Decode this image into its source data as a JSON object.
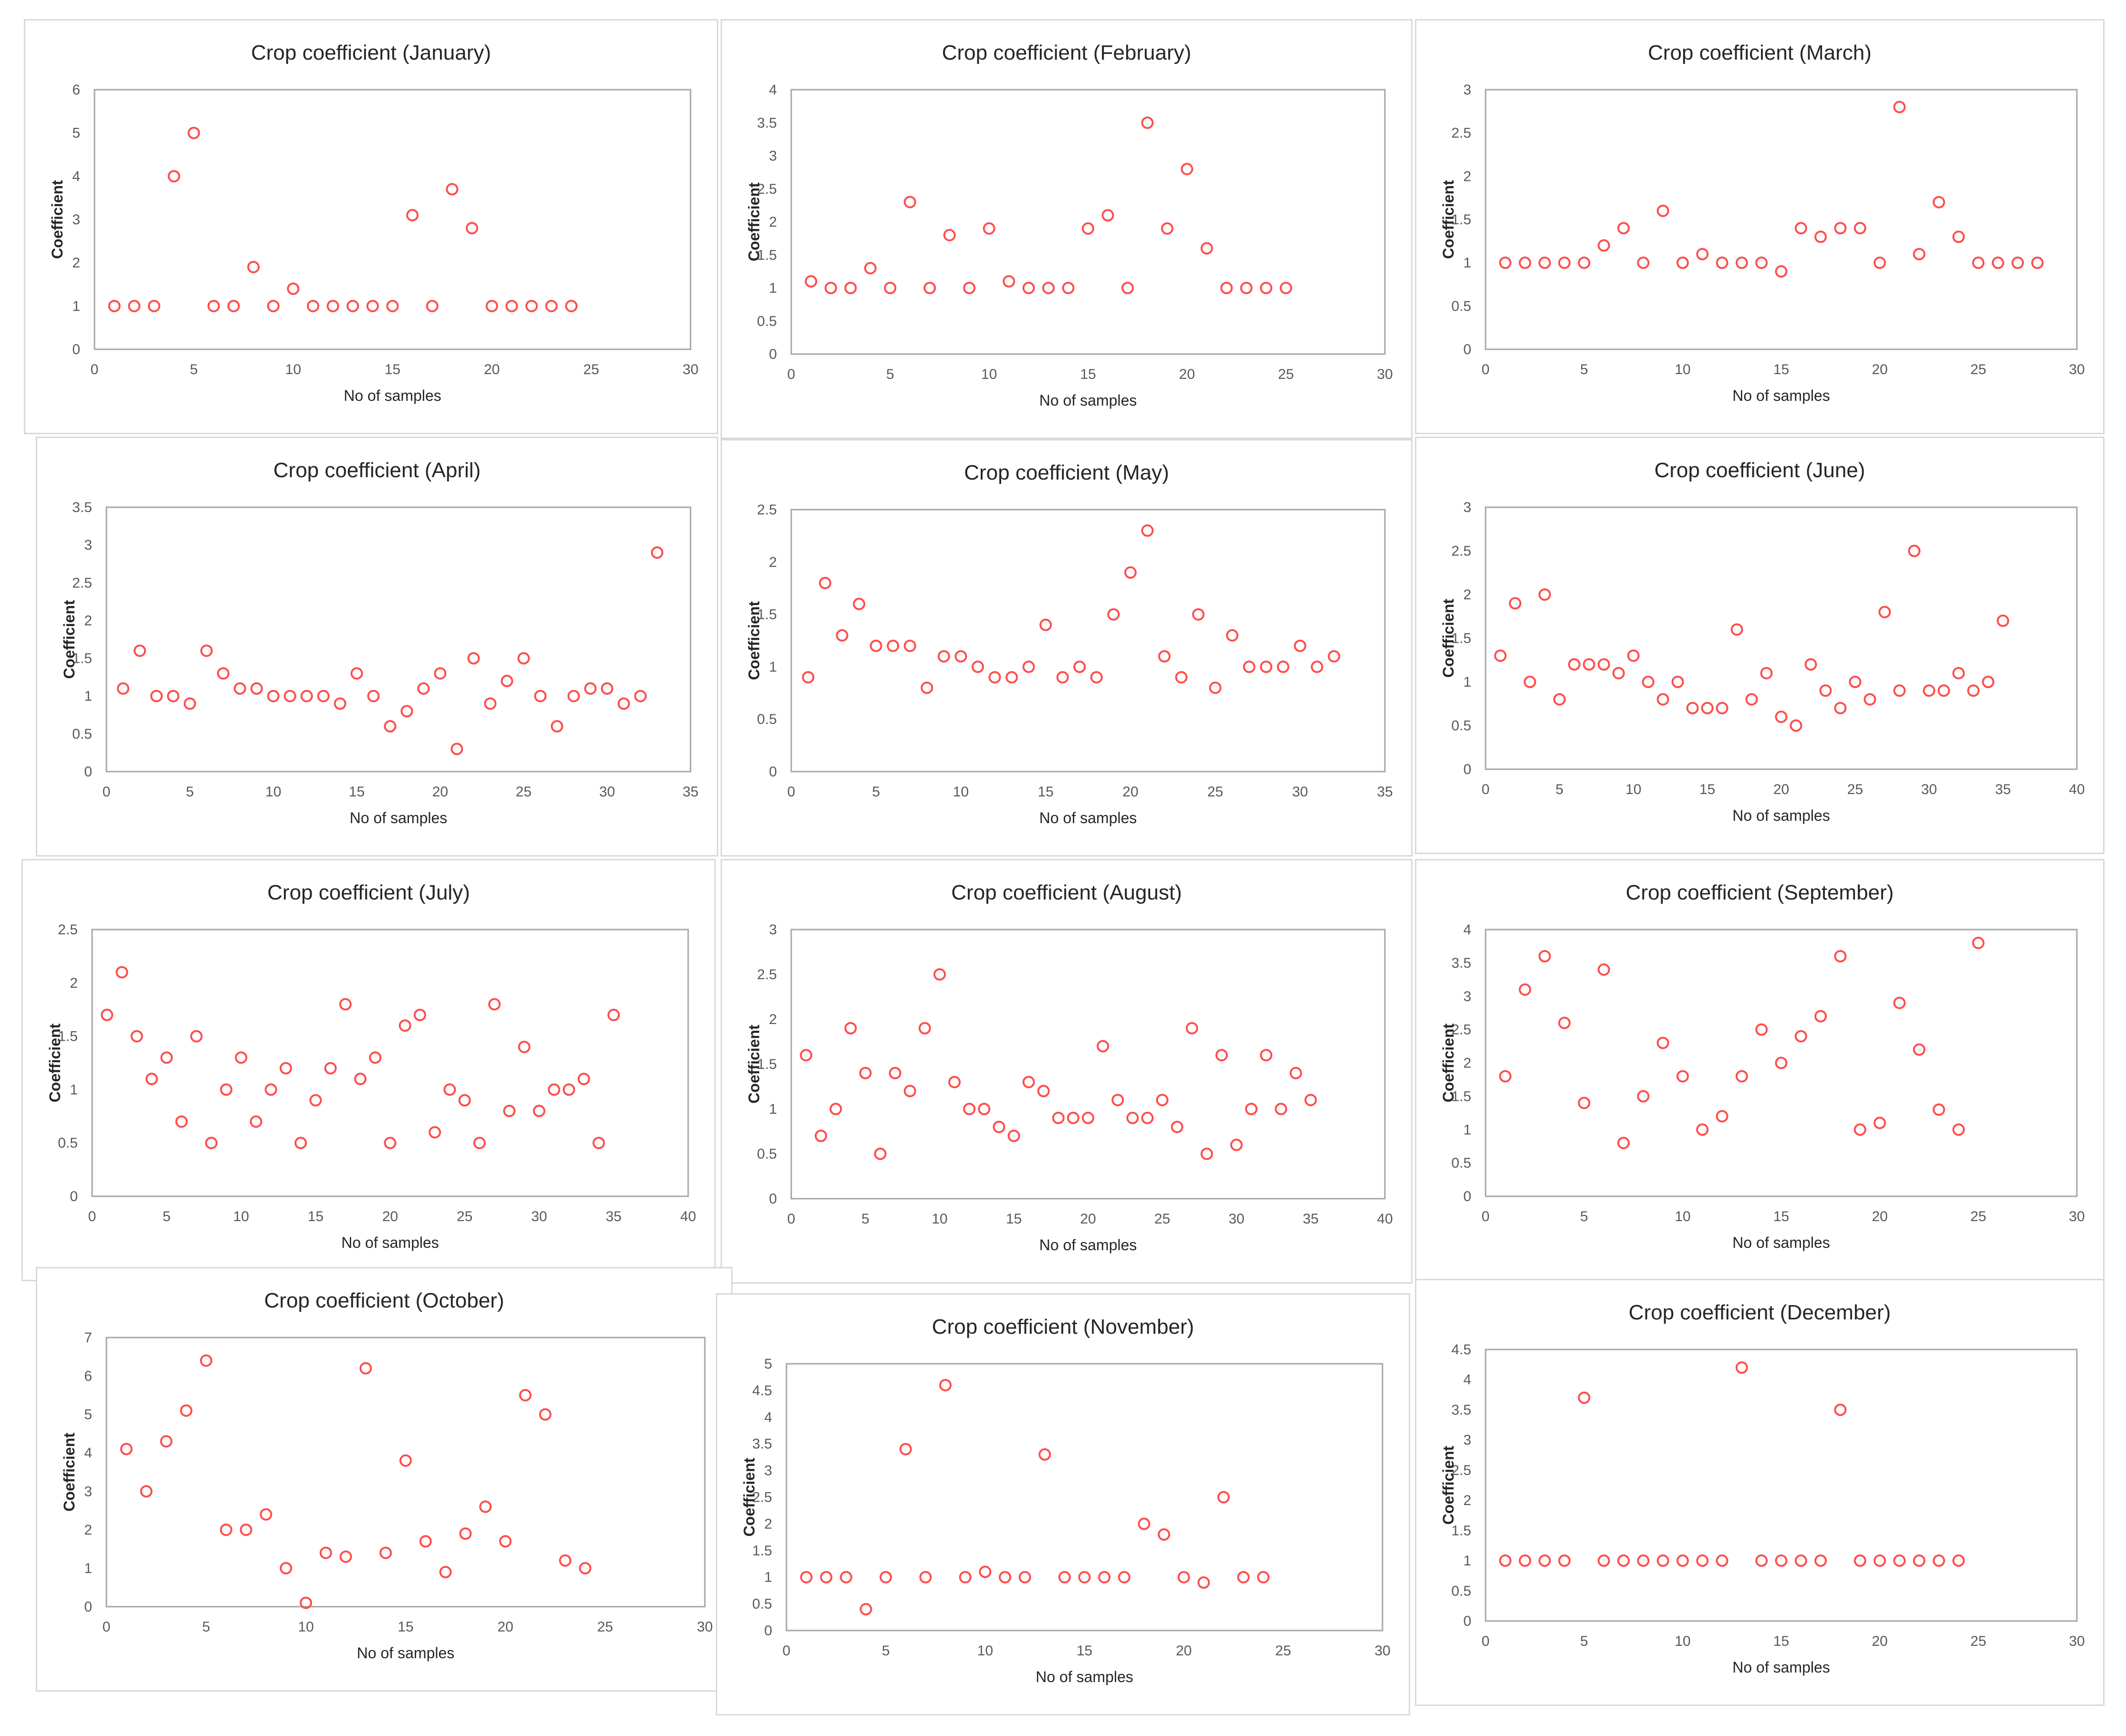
{
  "colors": {
    "marker": "#ff4d4d",
    "frame": "#a6a6a6",
    "text": "#262626",
    "tick": "#595959"
  },
  "chart_data": [
    {
      "type": "scatter",
      "title": "Crop coefficient (January)",
      "xlabel": "No of samples",
      "ylabel": "Coefficient",
      "xlim": [
        0,
        30
      ],
      "ylim": [
        0,
        6
      ],
      "xticks": [
        0,
        5,
        10,
        15,
        20,
        25,
        30
      ],
      "yticks": [
        0,
        1,
        2,
        3,
        4,
        5,
        6
      ],
      "x": [
        1,
        2,
        3,
        4,
        5,
        6,
        7,
        8,
        9,
        10,
        11,
        12,
        13,
        14,
        15,
        16,
        17,
        18,
        19,
        20,
        21,
        22,
        23,
        24
      ],
      "y": [
        1,
        1,
        1,
        4,
        5,
        1,
        1,
        1.9,
        1,
        1.4,
        1,
        1,
        1,
        1,
        1,
        3.1,
        1,
        3.7,
        2.8,
        1,
        1,
        1,
        1,
        1
      ]
    },
    {
      "type": "scatter",
      "title": "Crop coefficient (February)",
      "xlabel": "No of samples",
      "ylabel": "Coefficient",
      "xlim": [
        0,
        30
      ],
      "ylim": [
        0,
        4
      ],
      "xticks": [
        0,
        5,
        10,
        15,
        20,
        25,
        30
      ],
      "yticks": [
        0,
        0.5,
        1,
        1.5,
        2,
        2.5,
        3,
        3.5,
        4
      ],
      "x": [
        1,
        2,
        3,
        4,
        5,
        6,
        7,
        8,
        9,
        10,
        11,
        12,
        13,
        14,
        15,
        16,
        17,
        18,
        19,
        20,
        21,
        22,
        23,
        24,
        25
      ],
      "y": [
        1.1,
        1,
        1,
        1.3,
        1,
        2.3,
        1,
        1.8,
        1,
        1.9,
        1.1,
        1,
        1,
        1,
        1.9,
        2.1,
        1,
        3.5,
        1.9,
        2.8,
        1.6,
        1,
        1,
        1,
        1
      ]
    },
    {
      "type": "scatter",
      "title": "Crop coefficient (March)",
      "xlabel": "No of samples",
      "ylabel": "Coefficient",
      "xlim": [
        0,
        30
      ],
      "ylim": [
        0,
        3
      ],
      "xticks": [
        0,
        5,
        10,
        15,
        20,
        25,
        30
      ],
      "yticks": [
        0,
        0.5,
        1,
        1.5,
        2,
        2.5,
        3
      ],
      "x": [
        1,
        2,
        3,
        4,
        5,
        6,
        7,
        8,
        9,
        10,
        11,
        12,
        13,
        14,
        15,
        16,
        17,
        18,
        19,
        20,
        21,
        22,
        23,
        24,
        25,
        26,
        27,
        28
      ],
      "y": [
        1,
        1,
        1,
        1,
        1,
        1.2,
        1.4,
        1,
        1.6,
        1,
        1.1,
        1,
        1,
        1,
        0.9,
        1.4,
        1.3,
        1.4,
        1.4,
        1,
        2.8,
        1.1,
        1.7,
        1.3,
        1,
        1,
        1,
        1
      ]
    },
    {
      "type": "scatter",
      "title": "Crop coefficient (April)",
      "xlabel": "No of samples",
      "ylabel": "Coefficient",
      "xlim": [
        0,
        35
      ],
      "ylim": [
        0,
        3.5
      ],
      "xticks": [
        0,
        5,
        10,
        15,
        20,
        25,
        30,
        35
      ],
      "yticks": [
        0,
        0.5,
        1,
        1.5,
        2,
        2.5,
        3,
        3.5
      ],
      "x": [
        1,
        2,
        3,
        4,
        5,
        6,
        7,
        8,
        9,
        10,
        11,
        12,
        13,
        14,
        15,
        16,
        17,
        18,
        19,
        20,
        21,
        22,
        23,
        24,
        25,
        26,
        27,
        28,
        29,
        30,
        31,
        32,
        33
      ],
      "y": [
        1.1,
        1.6,
        1,
        1,
        0.9,
        1.6,
        1.3,
        1.1,
        1.1,
        1,
        1,
        1,
        1,
        0.9,
        1.3,
        1,
        0.6,
        0.8,
        1.1,
        1.3,
        0.3,
        1.5,
        0.9,
        1.2,
        1.5,
        1,
        0.6,
        1,
        1.1,
        1.1,
        0.9,
        1,
        2.9
      ]
    },
    {
      "type": "scatter",
      "title": "Crop coefficient (May)",
      "xlabel": "No of samples",
      "ylabel": "Coefficient",
      "xlim": [
        0,
        35
      ],
      "ylim": [
        0,
        2.5
      ],
      "xticks": [
        0,
        5,
        10,
        15,
        20,
        25,
        30,
        35
      ],
      "yticks": [
        0,
        0.5,
        1,
        1.5,
        2,
        2.5
      ],
      "x": [
        1,
        2,
        3,
        4,
        5,
        6,
        7,
        8,
        9,
        10,
        11,
        12,
        13,
        14,
        15,
        16,
        17,
        18,
        19,
        20,
        21,
        22,
        23,
        24,
        25,
        26,
        27,
        28,
        29,
        30,
        31,
        32
      ],
      "y": [
        0.9,
        1.8,
        1.3,
        1.6,
        1.2,
        1.2,
        1.2,
        0.8,
        1.1,
        1.1,
        1,
        0.9,
        0.9,
        1,
        1.4,
        0.9,
        1,
        0.9,
        1.5,
        1.9,
        2.3,
        1.1,
        0.9,
        1.5,
        0.8,
        1.3,
        1,
        1,
        1,
        1.2,
        1,
        1.1
      ]
    },
    {
      "type": "scatter",
      "title": "Crop coefficient (June)",
      "xlabel": "No of samples",
      "ylabel": "Coefficient",
      "xlim": [
        0,
        40
      ],
      "ylim": [
        0,
        3
      ],
      "xticks": [
        0,
        5,
        10,
        15,
        20,
        25,
        30,
        35,
        40
      ],
      "yticks": [
        0,
        0.5,
        1,
        1.5,
        2,
        2.5,
        3
      ],
      "x": [
        1,
        2,
        3,
        4,
        5,
        6,
        7,
        8,
        9,
        10,
        11,
        12,
        13,
        14,
        15,
        16,
        17,
        18,
        19,
        20,
        21,
        22,
        23,
        24,
        25,
        26,
        27,
        28,
        29,
        30,
        31,
        32,
        33,
        34,
        35
      ],
      "y": [
        1.3,
        1.9,
        1,
        2,
        0.8,
        1.2,
        1.2,
        1.2,
        1.1,
        1.3,
        1,
        0.8,
        1,
        0.7,
        0.7,
        0.7,
        1.6,
        0.8,
        1.1,
        0.6,
        0.5,
        1.2,
        0.9,
        0.7,
        1,
        0.8,
        1.8,
        0.9,
        2.5,
        0.9,
        0.9,
        1.1,
        0.9,
        1,
        1.7
      ]
    },
    {
      "type": "scatter",
      "title": "Crop coefficient (July)",
      "xlabel": "No of samples",
      "ylabel": "Coefficient",
      "xlim": [
        0,
        40
      ],
      "ylim": [
        0,
        2.5
      ],
      "xticks": [
        0,
        5,
        10,
        15,
        20,
        25,
        30,
        35,
        40
      ],
      "yticks": [
        0,
        0.5,
        1,
        1.5,
        2,
        2.5
      ],
      "x": [
        1,
        2,
        3,
        4,
        5,
        6,
        7,
        8,
        9,
        10,
        11,
        12,
        13,
        14,
        15,
        16,
        17,
        18,
        19,
        20,
        21,
        22,
        23,
        24,
        25,
        26,
        27,
        28,
        29,
        30,
        31,
        32,
        33,
        34,
        35
      ],
      "y": [
        1.7,
        2.1,
        1.5,
        1.1,
        1.3,
        0.7,
        1.5,
        0.5,
        1,
        1.3,
        0.7,
        1,
        1.2,
        0.5,
        0.9,
        1.2,
        1.8,
        1.1,
        1.3,
        0.5,
        1.6,
        1.7,
        0.6,
        1,
        0.9,
        0.5,
        1.8,
        0.8,
        1.4,
        0.8,
        1,
        1,
        1.1,
        0.5,
        1.7
      ]
    },
    {
      "type": "scatter",
      "title": "Crop coefficient (August)",
      "xlabel": "No of samples",
      "ylabel": "Coefficient",
      "xlim": [
        0,
        40
      ],
      "ylim": [
        0,
        3
      ],
      "xticks": [
        0,
        5,
        10,
        15,
        20,
        25,
        30,
        35,
        40
      ],
      "yticks": [
        0,
        0.5,
        1,
        1.5,
        2,
        2.5,
        3
      ],
      "x": [
        1,
        2,
        3,
        4,
        5,
        6,
        7,
        8,
        9,
        10,
        11,
        12,
        13,
        14,
        15,
        16,
        17,
        18,
        19,
        20,
        21,
        22,
        23,
        24,
        25,
        26,
        27,
        28,
        29,
        30,
        31,
        32,
        33,
        34,
        35
      ],
      "y": [
        1.6,
        0.7,
        1,
        1.9,
        1.4,
        0.5,
        1.4,
        1.2,
        1.9,
        2.5,
        1.3,
        1,
        1,
        0.8,
        0.7,
        1.3,
        1.2,
        0.9,
        0.9,
        0.9,
        1.7,
        1.1,
        0.9,
        0.9,
        1.1,
        0.8,
        1.9,
        0.5,
        1.6,
        0.6,
        1,
        1.6,
        1,
        1.4,
        1.1
      ]
    },
    {
      "type": "scatter",
      "title": "Crop coefficient (September)",
      "xlabel": "No of samples",
      "ylabel": "Coefficient",
      "xlim": [
        0,
        30
      ],
      "ylim": [
        0,
        4
      ],
      "xticks": [
        0,
        5,
        10,
        15,
        20,
        25,
        30
      ],
      "yticks": [
        0,
        0.5,
        1,
        1.5,
        2,
        2.5,
        3,
        3.5,
        4
      ],
      "x": [
        1,
        2,
        3,
        4,
        5,
        6,
        7,
        8,
        9,
        10,
        11,
        12,
        13,
        14,
        15,
        16,
        17,
        18,
        19,
        20,
        21,
        22,
        23,
        24,
        25
      ],
      "y": [
        1.8,
        3.1,
        3.6,
        2.6,
        1.4,
        3.4,
        0.8,
        1.5,
        2.3,
        1.8,
        1,
        1.2,
        1.8,
        2.5,
        2,
        2.4,
        2.7,
        3.6,
        1,
        1.1,
        2.9,
        2.2,
        1.3,
        1,
        3.8
      ]
    },
    {
      "type": "scatter",
      "title": "Crop coefficient (October)",
      "xlabel": "No of samples",
      "ylabel": "Coefficient",
      "xlim": [
        0,
        30
      ],
      "ylim": [
        0,
        7
      ],
      "xticks": [
        0,
        5,
        10,
        15,
        20,
        25,
        30
      ],
      "yticks": [
        0,
        1,
        2,
        3,
        4,
        5,
        6,
        7
      ],
      "x": [
        1,
        2,
        3,
        4,
        5,
        6,
        7,
        8,
        9,
        10,
        11,
        12,
        13,
        14,
        15,
        16,
        17,
        18,
        19,
        20,
        21,
        22,
        23,
        24
      ],
      "y": [
        4.1,
        3,
        4.3,
        5.1,
        6.4,
        2,
        2,
        2.4,
        1,
        0.1,
        1.4,
        1.3,
        6.2,
        1.4,
        3.8,
        1.7,
        0.9,
        1.9,
        2.6,
        1.7,
        5.5,
        5,
        1.2,
        1
      ]
    },
    {
      "type": "scatter",
      "title": "Crop coefficient (November)",
      "xlabel": "No of samples",
      "ylabel": "Coefficient",
      "xlim": [
        0,
        30
      ],
      "ylim": [
        0,
        5
      ],
      "xticks": [
        0,
        5,
        10,
        15,
        20,
        25,
        30
      ],
      "yticks": [
        0,
        0.5,
        1,
        1.5,
        2,
        2.5,
        3,
        3.5,
        4,
        4.5,
        5
      ],
      "x": [
        1,
        2,
        3,
        4,
        5,
        6,
        7,
        8,
        9,
        10,
        11,
        12,
        13,
        14,
        15,
        16,
        17,
        18,
        19,
        20,
        21,
        22,
        23,
        24
      ],
      "y": [
        1,
        1,
        1,
        0.4,
        1,
        3.4,
        1,
        4.6,
        1,
        1.1,
        1,
        1,
        3.3,
        1,
        1,
        1,
        1,
        2,
        1.8,
        1,
        0.9,
        2.5,
        1,
        1
      ]
    },
    {
      "type": "scatter",
      "title": "Crop coefficient (December)",
      "xlabel": "No of samples",
      "ylabel": "Coefficient",
      "xlim": [
        0,
        30
      ],
      "ylim": [
        0,
        4.5
      ],
      "xticks": [
        0,
        5,
        10,
        15,
        20,
        25,
        30
      ],
      "yticks": [
        0,
        0.5,
        1,
        1.5,
        2,
        2.5,
        3,
        3.5,
        4,
        4.5
      ],
      "x": [
        1,
        2,
        3,
        4,
        5,
        6,
        7,
        8,
        9,
        10,
        11,
        12,
        13,
        14,
        15,
        16,
        17,
        18,
        19,
        20,
        21,
        22,
        23,
        24
      ],
      "y": [
        1,
        1,
        1,
        1,
        3.7,
        1,
        1,
        1,
        1,
        1,
        1,
        1,
        4.2,
        1,
        1,
        1,
        1,
        3.5,
        1,
        1,
        1,
        1,
        1,
        1
      ]
    }
  ]
}
